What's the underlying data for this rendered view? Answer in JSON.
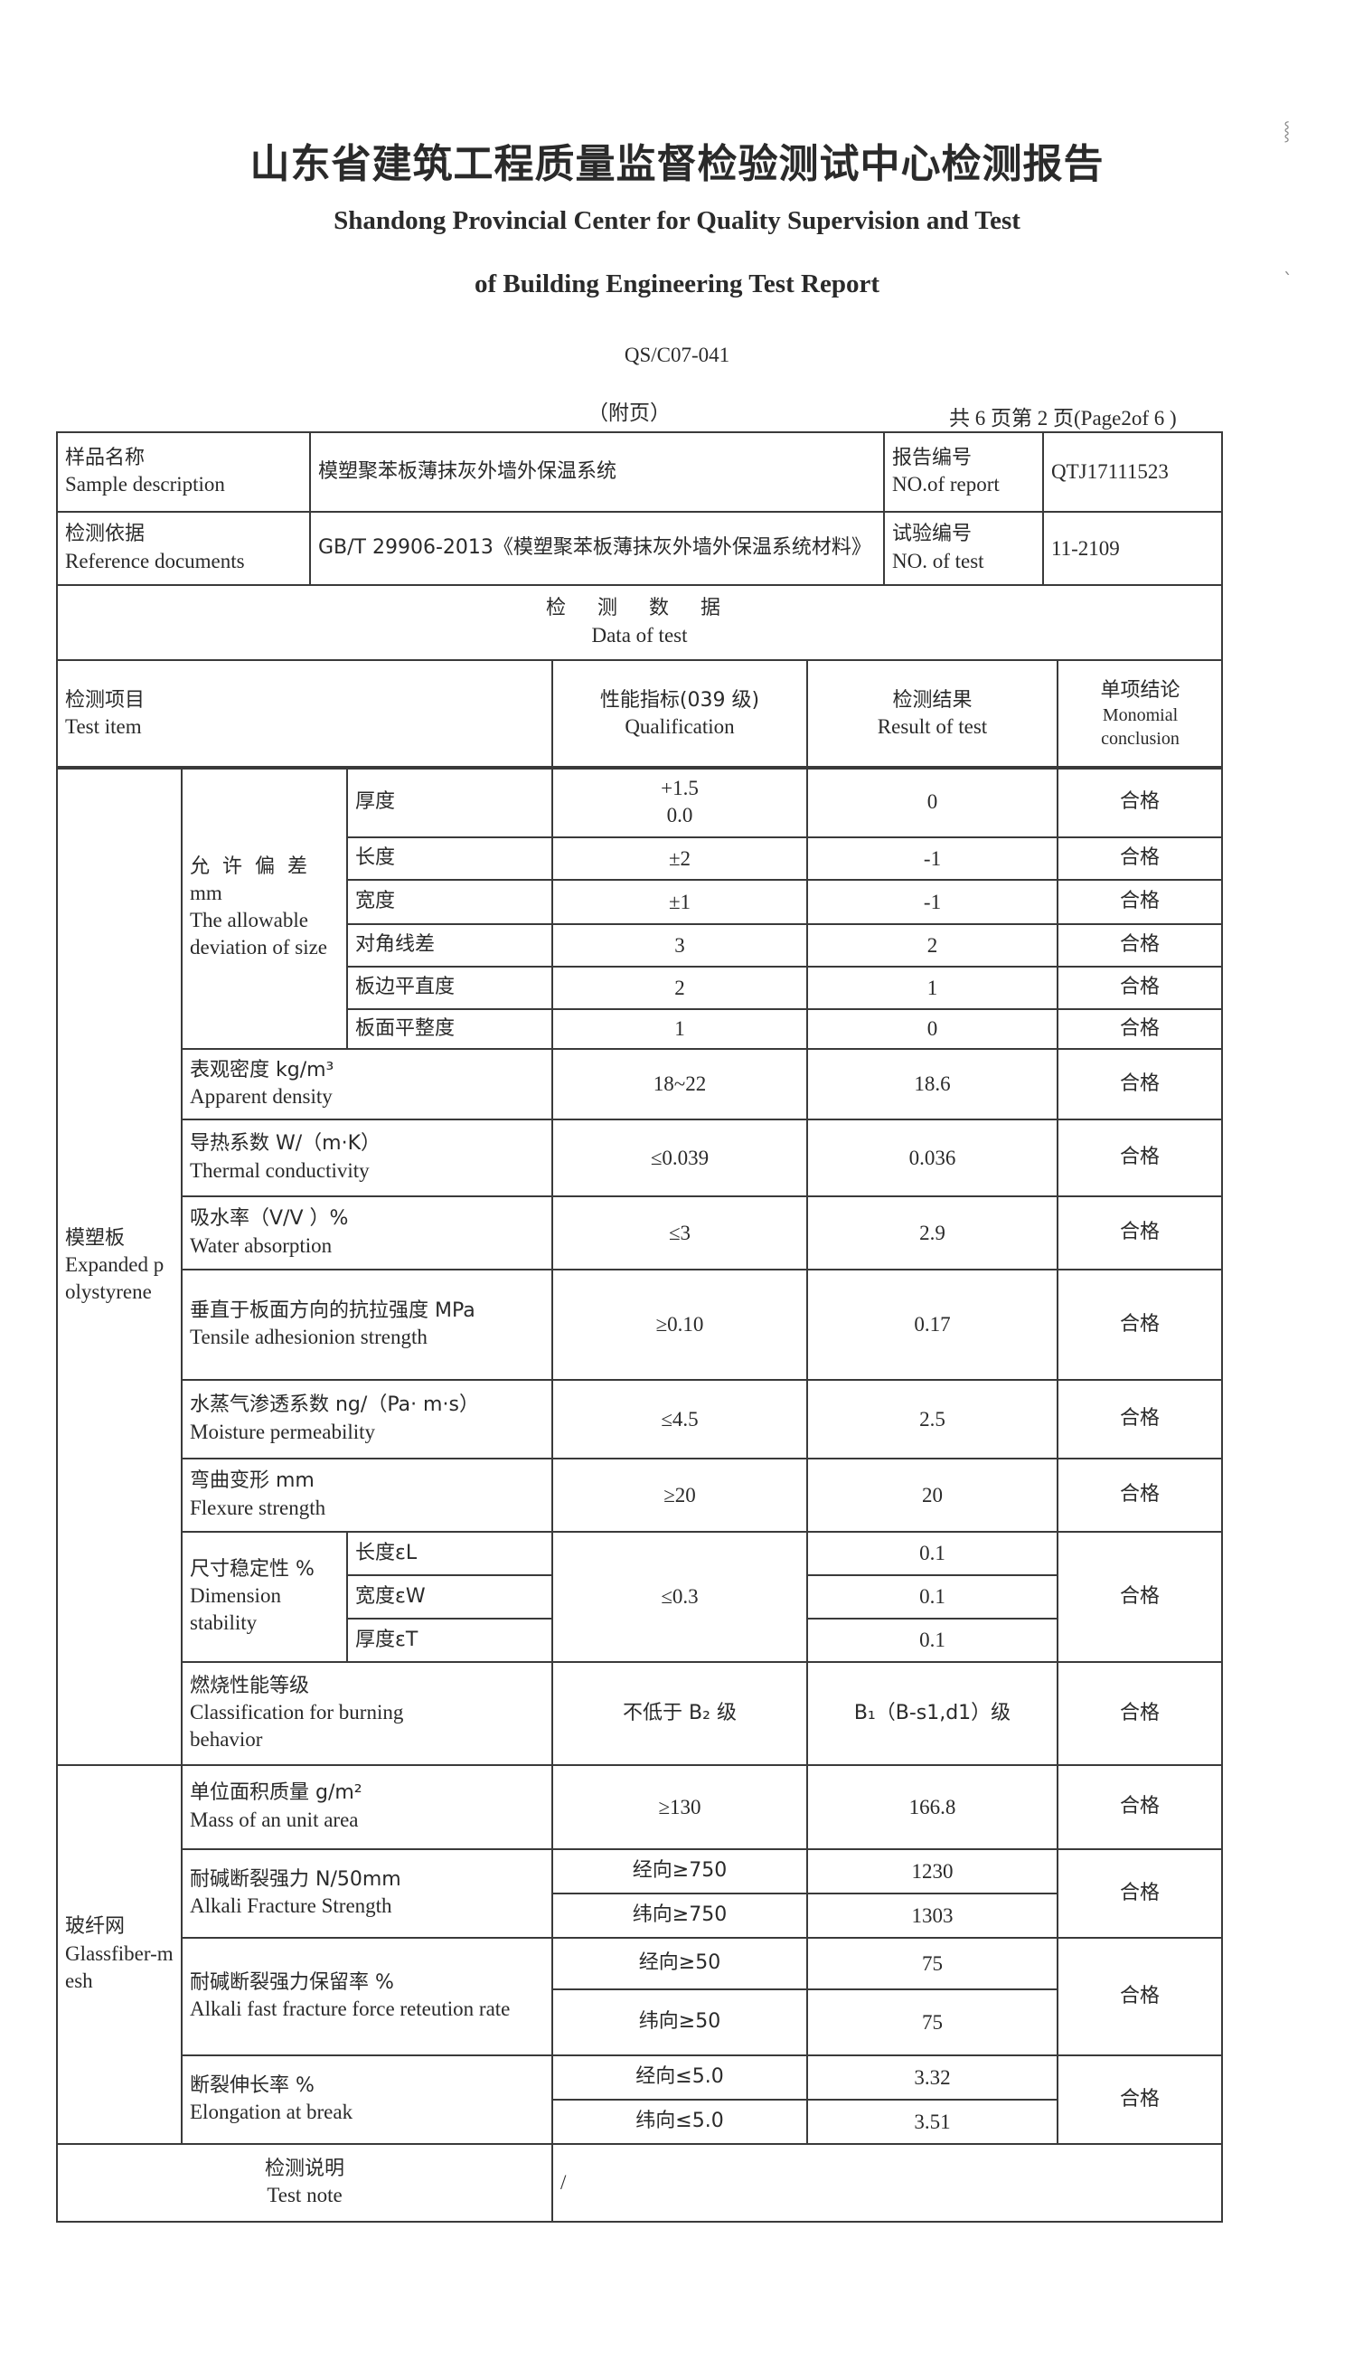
{
  "header": {
    "title_cn": "山东省建筑工程质量监督检验测试中心检测报告",
    "title_en_1": "Shandong Provincial Center for Quality Supervision and Test",
    "title_en_2": "of Building Engineering Test Report",
    "form_code": "QS/C07-041",
    "appendix": "（附页）",
    "page_info": "共 6 页第 2 页(Page2of 6 )"
  },
  "info": {
    "sample_label_cn": "样品名称",
    "sample_label_en": "Sample description",
    "sample_value": "模塑聚苯板薄抹灰外墙外保温系统",
    "report_no_label_cn": "报告编号",
    "report_no_label_en": "NO.of report",
    "report_no": "QTJ17111523",
    "ref_label_cn": "检测依据",
    "ref_label_en": "Reference documents",
    "ref_value": "GB/T 29906-2013《模塑聚苯板薄抹灰外墙外保温系统材料》",
    "test_no_label_cn": "试验编号",
    "test_no_label_en": "NO. of test",
    "test_no": "11-2109",
    "data_title_cn": "检 测 数 据",
    "data_title_en": "Data of test"
  },
  "columns": {
    "item_cn": "检测项目",
    "item_en": "Test item",
    "qual_cn": "性能指标(039 级)",
    "qual_en": "Qualification",
    "result_cn": "检测结果",
    "result_en": "Result of test",
    "concl_cn": "单项结论",
    "concl_en": "Monomial conclusion"
  },
  "eps": {
    "category_cn": "模塑板",
    "category_en": "Expanded polystyrene",
    "dev_group_cn": "允许偏差",
    "dev_group_unit": "mm",
    "dev_group_en": "The allowable deviation of size",
    "dev_rows": [
      {
        "item": "厚度",
        "qual": "+1.5 0.0",
        "result": "0",
        "concl": "合格"
      },
      {
        "item": "长度",
        "qual": "±2",
        "result": "-1",
        "concl": "合格"
      },
      {
        "item": "宽度",
        "qual": "±1",
        "result": "-1",
        "concl": "合格"
      },
      {
        "item": "对角线差",
        "qual": "3",
        "result": "2",
        "concl": "合格"
      },
      {
        "item": "板边平直度",
        "qual": "2",
        "result": "1",
        "concl": "合格"
      },
      {
        "item": "板面平整度",
        "qual": "1",
        "result": "0",
        "concl": "合格"
      }
    ],
    "rows": [
      {
        "cn": "表观密度 kg/m³",
        "en": "Apparent density",
        "qual": "18~22",
        "result": "18.6",
        "concl": "合格"
      },
      {
        "cn": "导热系数 W/（m·K）",
        "en": "Thermal conductivity",
        "qual": "≤0.039",
        "result": "0.036",
        "concl": "合格"
      },
      {
        "cn": "吸水率（V/V ）%",
        "en": "Water absorption",
        "qual": "≤3",
        "result": "2.9",
        "concl": "合格"
      },
      {
        "cn": "垂直于板面方向的抗拉强度 MPa",
        "en": "Tensile adhesionion strength",
        "qual": "≥0.10",
        "result": "0.17",
        "concl": "合格"
      },
      {
        "cn": "水蒸气渗透系数 ng/（Pa· m·s）",
        "en": "Moisture permeability",
        "qual": "≤4.5",
        "result": "2.5",
        "concl": "合格"
      },
      {
        "cn": "弯曲变形 mm",
        "en": "Flexure strength",
        "qual": "≥20",
        "result": "20",
        "concl": "合格"
      }
    ],
    "dim": {
      "cn": "尺寸稳定性 %",
      "en": "Dimension stability",
      "qual": "≤0.3",
      "concl": "合格",
      "subs": [
        {
          "item": "长度εL",
          "result": "0.1"
        },
        {
          "item": "宽度εW",
          "result": "0.1"
        },
        {
          "item": "厚度εT",
          "result": "0.1"
        }
      ]
    },
    "burn": {
      "cn": "燃烧性能等级",
      "en": "Classification for burning behavior",
      "qual": "不低于 B₂ 级",
      "result": "B₁（B-s1,d1）级",
      "concl": "合格"
    }
  },
  "glass": {
    "category_cn": "玻纤网",
    "category_en": "Glassfiber-mesh",
    "mass": {
      "cn": "单位面积质量 g/m²",
      "en": "Mass of an unit area",
      "qual": "≥130",
      "result": "166.8",
      "concl": "合格"
    },
    "alkali": {
      "cn": "耐碱断裂强力 N/50mm",
      "en": "Alkali Fracture Strength",
      "qual1": "经向≥750",
      "result1": "1230",
      "qual2": "纬向≥750",
      "result2": "1303",
      "concl": "合格"
    },
    "retention": {
      "cn": "耐碱断裂强力保留率 %",
      "en": "Alkali fast fracture force reteution rate",
      "qual1": "经向≥50",
      "result1": "75",
      "qual2": "纬向≥50",
      "result2": "75",
      "concl": "合格"
    },
    "elong": {
      "cn": "断裂伸长率 %",
      "en": "Elongation at break",
      "qual1": "经向≤5.0",
      "result1": "3.32",
      "qual2": "纬向≤5.0",
      "result2": "3.51",
      "concl": "合格"
    }
  },
  "note": {
    "label_cn": "检测说明",
    "label_en": "Test note",
    "value": "/"
  }
}
